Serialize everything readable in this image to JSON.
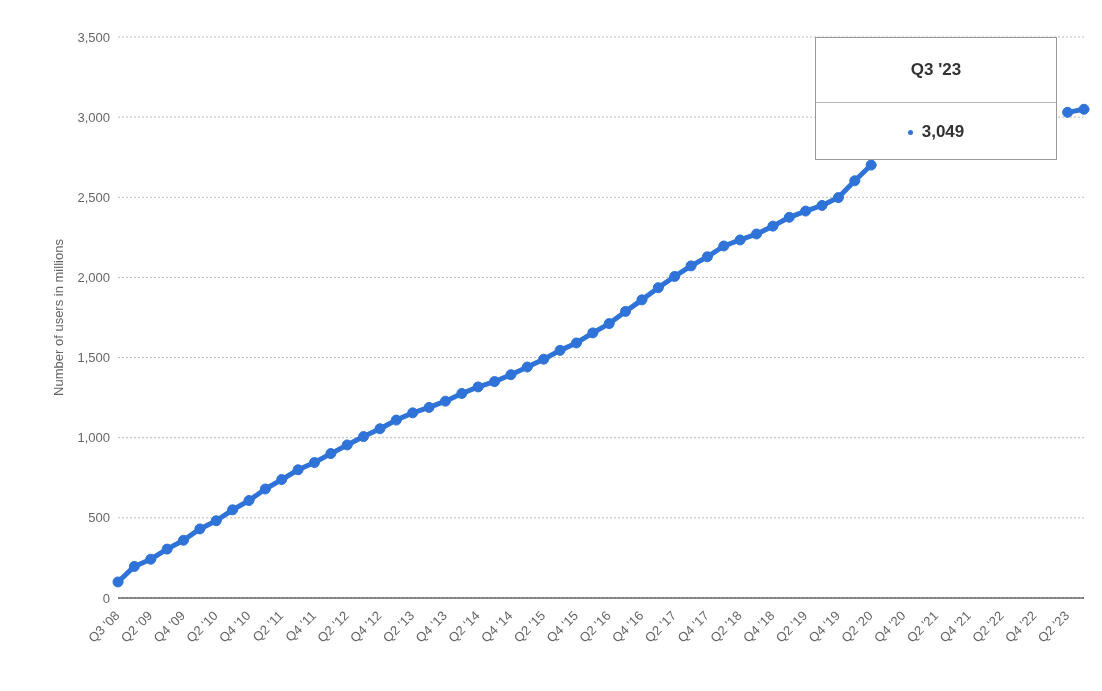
{
  "chart_data": {
    "type": "line",
    "ylabel": "Number of users in millions",
    "annotations": [
      "Q3 '23",
      "3,049"
    ],
    "categories": [
      "Q3 '08",
      null,
      "Q2 '09",
      null,
      "Q4 '09",
      null,
      "Q2 '10",
      null,
      "Q4 '10",
      null,
      "Q2 '11",
      null,
      "Q4 '11",
      null,
      "Q2 '12",
      null,
      "Q4 '12",
      null,
      "Q2 '13",
      null,
      "Q4 '13",
      null,
      "Q2 '14",
      null,
      "Q4 '14",
      null,
      "Q2 '15",
      null,
      "Q4 '15",
      null,
      "Q2 '16",
      null,
      "Q4 '16",
      null,
      "Q2 '17",
      null,
      "Q4 '17",
      null,
      "Q2 '18",
      null,
      "Q4 '18",
      null,
      "Q2 '19",
      null,
      "Q4 '19",
      null,
      "Q2 '20",
      null,
      "Q4 '20",
      null,
      "Q2 '21",
      null,
      "Q4 '21",
      null,
      "Q2 '22",
      null,
      "Q4 '22",
      null,
      "Q2 '23",
      null
    ],
    "series": [
      {
        "color": "#2f73d8",
        "values": [
          100,
          197,
          242,
          305,
          360,
          431,
          482,
          550,
          608,
          680,
          739,
          800,
          845,
          901,
          955,
          1007,
          1056,
          1110,
          1155,
          1189,
          1228,
          1276,
          1317,
          1350,
          1393,
          1441,
          1490,
          1545,
          1591,
          1654,
          1712,
          1788,
          1860,
          1936,
          2006,
          2072,
          2129,
          2196,
          2234,
          2271,
          2320,
          2375,
          2414,
          2449,
          2498,
          2603,
          2701,
          null,
          null,
          null,
          null,
          null,
          null,
          null,
          null,
          null,
          null,
          null,
          3030,
          3049
        ]
      }
    ],
    "ylim": [
      0,
      3500
    ],
    "yticks": [
      {
        "value": 0,
        "label": "0"
      },
      {
        "value": 500,
        "label": "500"
      },
      {
        "value": 1000,
        "label": "1,000"
      },
      {
        "value": 1500,
        "label": "1,500"
      },
      {
        "value": 2000,
        "label": "2,000"
      },
      {
        "value": 2500,
        "label": "2,500"
      },
      {
        "value": 3000,
        "label": "3,000"
      },
      {
        "value": 3500,
        "label": "3,500"
      }
    ],
    "grid": "y",
    "marker": "circle",
    "line_style": "solid",
    "legend": false
  }
}
